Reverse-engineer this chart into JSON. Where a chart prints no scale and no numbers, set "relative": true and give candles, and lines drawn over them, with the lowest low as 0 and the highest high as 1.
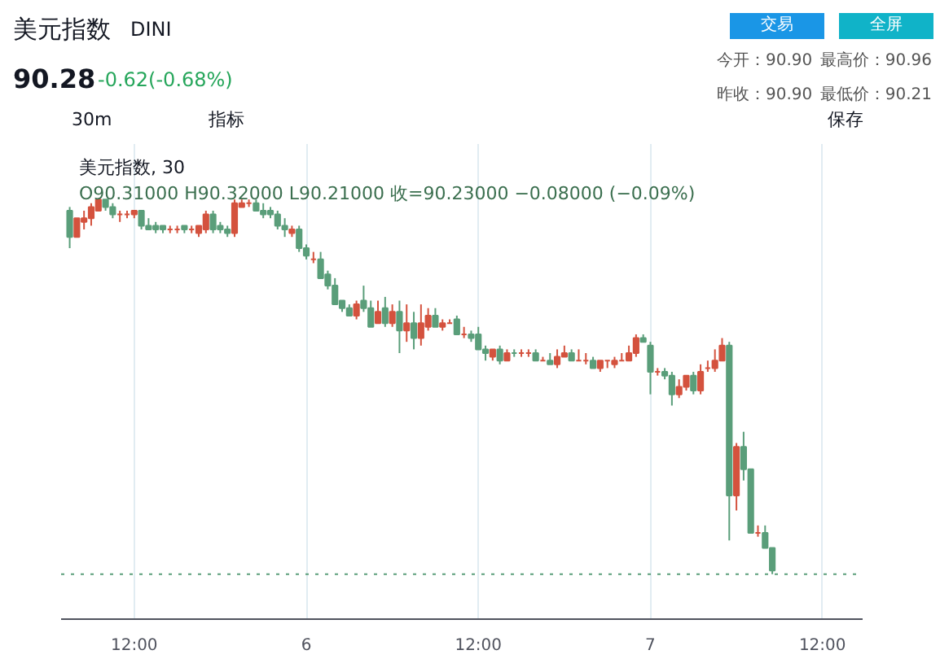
{
  "chart_data": {
    "type": "candlestick",
    "title": "美元指数",
    "subtitle": "DINI",
    "relative": true,
    "grid": "x",
    "categories": [
      null,
      null,
      null,
      null,
      null,
      null,
      null,
      null,
      null,
      "12:00",
      null,
      null,
      null,
      null,
      null,
      null,
      null,
      null,
      null,
      null,
      null,
      null,
      null,
      null,
      null,
      null,
      null,
      null,
      null,
      null,
      null,
      null,
      null,
      "6",
      null,
      null,
      null,
      null,
      null,
      null,
      null,
      null,
      null,
      null,
      null,
      null,
      null,
      null,
      null,
      null,
      null,
      null,
      null,
      null,
      null,
      null,
      null,
      "12:00",
      null,
      null,
      null,
      null,
      null,
      null,
      null,
      null,
      null,
      null,
      null,
      null,
      null,
      null,
      null,
      null,
      null,
      null,
      null,
      null,
      null,
      null,
      null,
      "7",
      null,
      null,
      null,
      null,
      null,
      null,
      null,
      null,
      null,
      null,
      null,
      null,
      null,
      null,
      null,
      null,
      null,
      null,
      null,
      null,
      null,
      null,
      null,
      "12:00",
      null
    ],
    "annotations": [
      "90.28",
      "-0.62(-0.68%)",
      "今开：90.90",
      "最高价：90.96",
      "昨收：90.90",
      "最低价：90.21",
      "30m",
      "指标",
      "保存",
      "美元指数, 30",
      "O90.31000 H90.32000 L90.21000 收=90.23000 −0.08000 (−0.09%)",
      "交易",
      "全屏"
    ],
    "ref_lines": [
      {
        "axis": "y",
        "value": 0.0,
        "line_style": "dotted",
        "color": "#5a9e7a"
      }
    ],
    "ohlc": [
      [
        0.97,
        0.98,
        0.87,
        0.9
      ],
      [
        0.9,
        0.95,
        0.9,
        0.95
      ],
      [
        0.94,
        0.97,
        0.92,
        0.95
      ],
      [
        0.95,
        0.99,
        0.93,
        0.98
      ],
      [
        0.97,
        1.0,
        0.97,
        1.0
      ],
      [
        1.0,
        1.0,
        0.97,
        0.98
      ],
      [
        0.98,
        0.99,
        0.95,
        0.96
      ],
      [
        0.96,
        0.97,
        0.94,
        0.96
      ],
      [
        0.96,
        0.97,
        0.95,
        0.96
      ],
      [
        0.96,
        0.97,
        0.95,
        0.97
      ],
      [
        0.97,
        0.97,
        0.92,
        0.93
      ],
      [
        0.93,
        0.95,
        0.92,
        0.92
      ],
      [
        0.93,
        0.94,
        0.91,
        0.92
      ],
      [
        0.93,
        0.93,
        0.91,
        0.92
      ],
      [
        0.92,
        0.93,
        0.91,
        0.92
      ],
      [
        0.92,
        0.93,
        0.91,
        0.92
      ],
      [
        0.93,
        0.93,
        0.91,
        0.92
      ],
      [
        0.92,
        0.93,
        0.91,
        0.92
      ],
      [
        0.91,
        0.93,
        0.9,
        0.93
      ],
      [
        0.92,
        0.97,
        0.91,
        0.96
      ],
      [
        0.96,
        0.97,
        0.91,
        0.92
      ],
      [
        0.93,
        0.94,
        0.91,
        0.92
      ],
      [
        0.92,
        0.93,
        0.9,
        0.91
      ],
      [
        0.91,
        1.0,
        0.9,
        0.99
      ],
      [
        0.98,
        1.0,
        0.98,
        0.99
      ],
      [
        0.99,
        1.0,
        0.98,
        0.99
      ],
      [
        0.99,
        1.0,
        0.97,
        0.97
      ],
      [
        0.97,
        0.99,
        0.95,
        0.96
      ],
      [
        0.97,
        0.98,
        0.95,
        0.96
      ],
      [
        0.96,
        0.97,
        0.92,
        0.93
      ],
      [
        0.93,
        0.95,
        0.9,
        0.92
      ],
      [
        0.91,
        0.93,
        0.9,
        0.92
      ],
      [
        0.92,
        0.93,
        0.86,
        0.87
      ],
      [
        0.87,
        0.88,
        0.84,
        0.85
      ],
      [
        0.84,
        0.86,
        0.83,
        0.84
      ],
      [
        0.84,
        0.86,
        0.79,
        0.79
      ],
      [
        0.8,
        0.81,
        0.76,
        0.77
      ],
      [
        0.77,
        0.79,
        0.72,
        0.72
      ],
      [
        0.73,
        0.73,
        0.7,
        0.71
      ],
      [
        0.71,
        0.72,
        0.69,
        0.69
      ],
      [
        0.69,
        0.73,
        0.68,
        0.72
      ],
      [
        0.73,
        0.77,
        0.7,
        0.71
      ],
      [
        0.71,
        0.73,
        0.66,
        0.66
      ],
      [
        0.67,
        0.73,
        0.67,
        0.7
      ],
      [
        0.71,
        0.74,
        0.66,
        0.67
      ],
      [
        0.67,
        0.72,
        0.66,
        0.7
      ],
      [
        0.7,
        0.73,
        0.59,
        0.65
      ],
      [
        0.65,
        0.72,
        0.62,
        0.67
      ],
      [
        0.67,
        0.7,
        0.6,
        0.63
      ],
      [
        0.63,
        0.72,
        0.61,
        0.67
      ],
      [
        0.66,
        0.71,
        0.65,
        0.69
      ],
      [
        0.69,
        0.71,
        0.66,
        0.66
      ],
      [
        0.66,
        0.68,
        0.65,
        0.67
      ],
      [
        0.67,
        0.68,
        0.67,
        0.67
      ],
      [
        0.68,
        0.69,
        0.64,
        0.64
      ],
      [
        0.64,
        0.66,
        0.63,
        0.64
      ],
      [
        0.64,
        0.65,
        0.62,
        0.63
      ],
      [
        0.64,
        0.66,
        0.6,
        0.6
      ],
      [
        0.6,
        0.61,
        0.57,
        0.59
      ],
      [
        0.58,
        0.6,
        0.57,
        0.6
      ],
      [
        0.6,
        0.61,
        0.56,
        0.57
      ],
      [
        0.57,
        0.6,
        0.57,
        0.59
      ],
      [
        0.59,
        0.6,
        0.58,
        0.59
      ],
      [
        0.59,
        0.6,
        0.58,
        0.59
      ],
      [
        0.59,
        0.6,
        0.58,
        0.59
      ],
      [
        0.59,
        0.6,
        0.57,
        0.57
      ],
      [
        0.57,
        0.58,
        0.57,
        0.57
      ],
      [
        0.57,
        0.59,
        0.56,
        0.56
      ],
      [
        0.56,
        0.6,
        0.55,
        0.58
      ],
      [
        0.58,
        0.61,
        0.58,
        0.59
      ],
      [
        0.59,
        0.6,
        0.57,
        0.57
      ],
      [
        0.57,
        0.6,
        0.57,
        0.57
      ],
      [
        0.57,
        0.59,
        0.56,
        0.57
      ],
      [
        0.57,
        0.58,
        0.55,
        0.55
      ],
      [
        0.55,
        0.57,
        0.54,
        0.57
      ],
      [
        0.57,
        0.57,
        0.55,
        0.57
      ],
      [
        0.56,
        0.58,
        0.55,
        0.57
      ],
      [
        0.57,
        0.59,
        0.57,
        0.57
      ],
      [
        0.57,
        0.61,
        0.57,
        0.59
      ],
      [
        0.59,
        0.64,
        0.58,
        0.63
      ],
      [
        0.63,
        0.64,
        0.62,
        0.62
      ],
      [
        0.61,
        0.62,
        0.48,
        0.54
      ],
      [
        0.54,
        0.55,
        0.53,
        0.54
      ],
      [
        0.54,
        0.55,
        0.52,
        0.53
      ],
      [
        0.53,
        0.54,
        0.45,
        0.48
      ],
      [
        0.48,
        0.52,
        0.47,
        0.5
      ],
      [
        0.5,
        0.53,
        0.49,
        0.53
      ],
      [
        0.53,
        0.54,
        0.48,
        0.49
      ],
      [
        0.49,
        0.56,
        0.48,
        0.54
      ],
      [
        0.55,
        0.57,
        0.54,
        0.55
      ],
      [
        0.55,
        0.6,
        0.54,
        0.57
      ],
      [
        0.57,
        0.63,
        0.57,
        0.61
      ],
      [
        0.61,
        0.62,
        0.09,
        0.21
      ],
      [
        0.21,
        0.35,
        0.17,
        0.34
      ],
      [
        0.34,
        0.38,
        0.25,
        0.28
      ],
      [
        0.28,
        0.28,
        0.11,
        0.11
      ],
      [
        0.11,
        0.13,
        0.1,
        0.11
      ],
      [
        0.11,
        0.13,
        0.07,
        0.07
      ],
      [
        0.07,
        0.07,
        0.0,
        0.01
      ],
      null,
      null,
      null,
      null,
      null,
      null,
      null,
      null
    ],
    "colors": [
      "#5a9e7a",
      "#d4523e",
      "#d4523e",
      "#d4523e",
      "#d4523e",
      "#5a9e7a",
      "#5a9e7a",
      "#d4523e",
      "#d4523e",
      "#d4523e",
      "#5a9e7a",
      "#5a9e7a",
      "#5a9e7a",
      "#5a9e7a",
      "#d4523e",
      "#d4523e",
      "#5a9e7a",
      "#d4523e",
      "#d4523e",
      "#d4523e",
      "#5a9e7a",
      "#5a9e7a",
      "#5a9e7a",
      "#d4523e",
      "#d4523e",
      "#d4523e",
      "#5a9e7a",
      "#5a9e7a",
      "#5a9e7a",
      "#5a9e7a",
      "#5a9e7a",
      "#d4523e",
      "#5a9e7a",
      "#5a9e7a",
      "#d4523e",
      "#5a9e7a",
      "#5a9e7a",
      "#5a9e7a",
      "#5a9e7a",
      "#5a9e7a",
      "#d4523e",
      "#5a9e7a",
      "#5a9e7a",
      "#d4523e",
      "#5a9e7a",
      "#d4523e",
      "#5a9e7a",
      "#d4523e",
      "#5a9e7a",
      "#d4523e",
      "#d4523e",
      "#5a9e7a",
      "#d4523e",
      "#d4523e",
      "#5a9e7a",
      "#d4523e",
      "#5a9e7a",
      "#5a9e7a",
      "#5a9e7a",
      "#d4523e",
      "#5a9e7a",
      "#d4523e",
      "#5a9e7a",
      "#d4523e",
      "#d4523e",
      "#5a9e7a",
      "#d4523e",
      "#5a9e7a",
      "#d4523e",
      "#d4523e",
      "#5a9e7a",
      "#d4523e",
      "#d4523e",
      "#5a9e7a",
      "#d4523e",
      "#d4523e",
      "#d4523e",
      "#d4523e",
      "#d4523e",
      "#d4523e",
      "#5a9e7a",
      "#5a9e7a",
      "#d4523e",
      "#5a9e7a",
      "#5a9e7a",
      "#d4523e",
      "#d4523e",
      "#5a9e7a",
      "#d4523e",
      "#d4523e",
      "#d4523e",
      "#d4523e",
      "#5a9e7a",
      "#d4523e",
      "#5a9e7a",
      "#5a9e7a",
      "#d4523e",
      "#5a9e7a",
      "#5a9e7a",
      null,
      null,
      null,
      null,
      null,
      null,
      null,
      null
    ]
  }
}
